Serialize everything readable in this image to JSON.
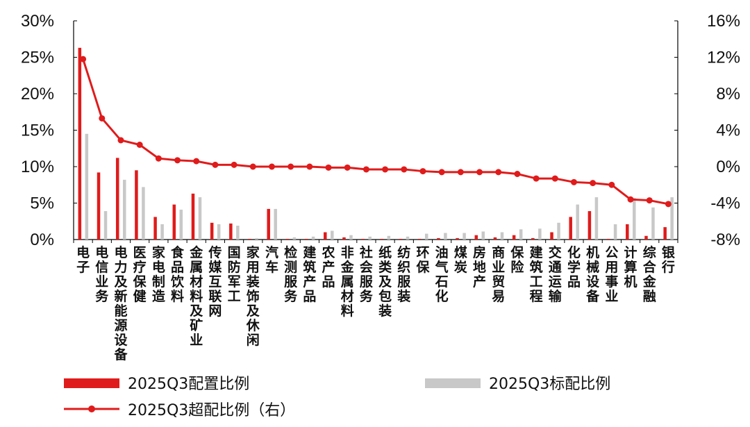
{
  "chart_data": {
    "type": "bar+line",
    "categories": [
      "电子",
      "电信业务",
      "电力及新能源设备",
      "医疗保健",
      "家电制造",
      "食品饮料",
      "金属材料及矿业",
      "传媒互联网",
      "国防军工",
      "家用装饰及休闲",
      "汽车",
      "检测服务",
      "建筑产品",
      "农产品",
      "非金属材料",
      "社会服务",
      "纸类及包装",
      "纺织服装",
      "环保",
      "油气石化",
      "煤炭",
      "房地产",
      "商业贸易",
      "保险",
      "建筑工程",
      "交通运输",
      "化学品",
      "机械设备",
      "公用事业",
      "计算机",
      "综合金融",
      "银行"
    ],
    "series": [
      {
        "name": "2025Q3配置比例",
        "axis": "left",
        "type": "bar",
        "color": "#e01b1b",
        "values": [
          26.3,
          9.2,
          11.2,
          9.5,
          3.1,
          4.8,
          6.3,
          2.3,
          2.2,
          0.1,
          4.2,
          0.1,
          0.1,
          1.0,
          0.3,
          0.1,
          0.1,
          0.1,
          0.1,
          0.2,
          0.2,
          0.6,
          0.3,
          0.6,
          0.2,
          1.0,
          3.1,
          3.9,
          0.1,
          2.1,
          0.5,
          1.7
        ]
      },
      {
        "name": "2025Q3标配比例",
        "axis": "left",
        "type": "bar",
        "color": "#c8c8c8",
        "values": [
          14.5,
          3.9,
          8.2,
          7.2,
          2.1,
          4.1,
          5.8,
          2.1,
          1.9,
          0.2,
          4.2,
          0.3,
          0.4,
          1.2,
          0.6,
          0.4,
          0.5,
          0.4,
          0.8,
          0.9,
          0.9,
          1.1,
          1.0,
          1.4,
          1.5,
          2.3,
          4.8,
          5.8,
          2.1,
          5.7,
          4.4,
          5.8
        ]
      },
      {
        "name": "2025Q3超配比例（右）",
        "axis": "right",
        "type": "line",
        "color": "#e01b1b",
        "values": [
          11.8,
          5.3,
          2.9,
          2.4,
          0.9,
          0.7,
          0.6,
          0.2,
          0.2,
          0.0,
          0.0,
          0.0,
          0.0,
          -0.1,
          -0.1,
          -0.3,
          -0.3,
          -0.3,
          -0.5,
          -0.6,
          -0.6,
          -0.6,
          -0.6,
          -0.8,
          -1.3,
          -1.3,
          -1.7,
          -1.8,
          -2.0,
          -3.6,
          -3.7,
          -4.1
        ]
      }
    ],
    "ylim_left": [
      0,
      30
    ],
    "ylim_right": [
      -8,
      16
    ],
    "yticks_left": [
      "0%",
      "5%",
      "10%",
      "15%",
      "20%",
      "25%",
      "30%"
    ],
    "yticks_right": [
      "-8%",
      "-4%",
      "0%",
      "4%",
      "8%",
      "12%",
      "16%"
    ],
    "legend": [
      "2025Q3配置比例",
      "2025Q3标配比例",
      "2025Q3超配比例（右）"
    ],
    "legend_position": "bottom",
    "grid": false
  },
  "colors": {
    "accent": "#e01b1b",
    "benchmark": "#c8c8c8",
    "axis": "#000000"
  }
}
